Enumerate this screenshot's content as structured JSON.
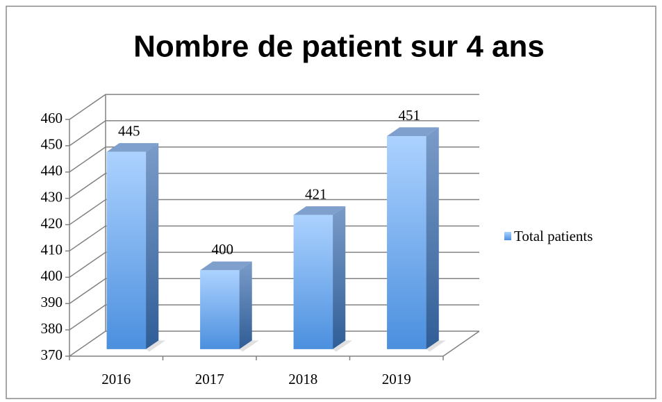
{
  "chart_data": {
    "type": "bar3d",
    "title": "Nombre de patient sur 4 ans",
    "categories": [
      "2016",
      "2017",
      "2018",
      "2019"
    ],
    "series": [
      {
        "name": "Total patients",
        "color": "#5b9bd5",
        "values": [
          445,
          400,
          421,
          451
        ]
      }
    ],
    "ylim": [
      370,
      460
    ],
    "yticks": [
      370,
      380,
      390,
      400,
      410,
      420,
      430,
      440,
      450,
      460
    ],
    "grid": true,
    "legend": "right"
  }
}
